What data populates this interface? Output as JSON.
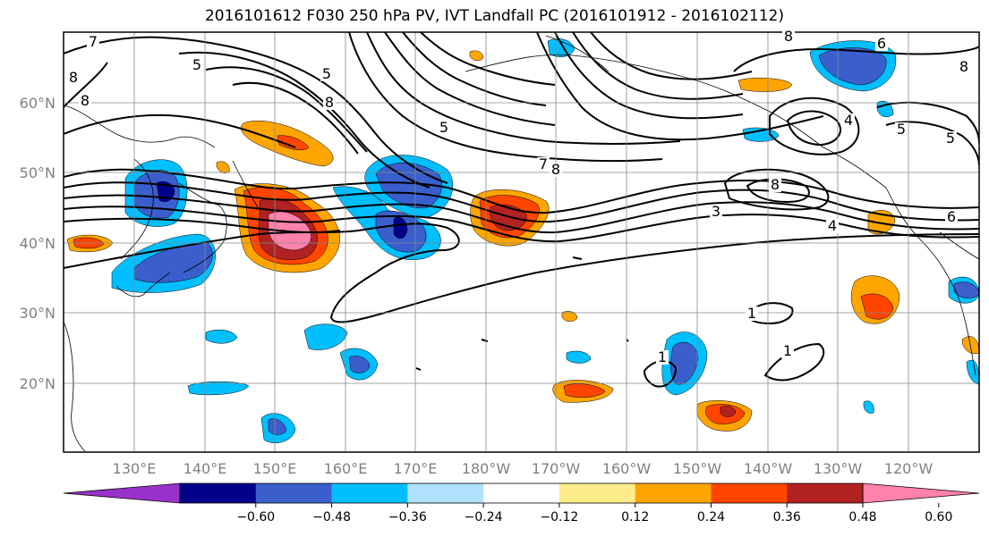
{
  "title": "2016101612 F030 250 hPa PV, IVT Landfall PC (2016101912 - 2016102112)",
  "lat_labels": [
    "60°N",
    "50°N",
    "40°N",
    "30°N",
    "20°N"
  ],
  "lon_labels": [
    "130°E",
    "140°E",
    "150°E",
    "160°E",
    "170°E",
    "180°W",
    "170°W",
    "160°W",
    "150°W",
    "140°W",
    "130°W",
    "120°W"
  ],
  "contour_labels": [
    "7",
    "5",
    "8",
    "8",
    "8",
    "5",
    "5",
    "7",
    "8",
    "8",
    "6",
    "8",
    "4",
    "5",
    "5",
    "3",
    "8",
    "4",
    "6",
    "1",
    "1",
    "1"
  ],
  "colorbar": {
    "tick_labels": [
      "−0.60",
      "−0.48",
      "−0.36",
      "−0.24",
      "−0.12",
      "0.12",
      "0.24",
      "0.36",
      "0.48",
      "0.60"
    ],
    "colors": [
      "#9932cc",
      "#00008b",
      "#3a5fcd",
      "#00bfff",
      "#b0e2ff",
      "#ffffff",
      "#ffec8b",
      "#ffa500",
      "#ff4500",
      "#b22222",
      "#ff82ab"
    ]
  }
}
